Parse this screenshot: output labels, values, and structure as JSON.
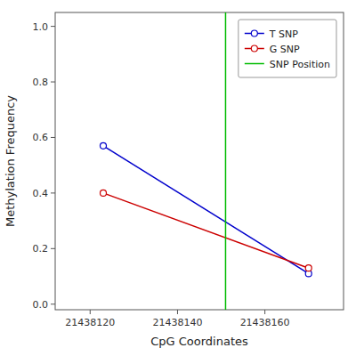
{
  "chart_data": {
    "type": "line",
    "xlabel": "CpG Coordinates",
    "ylabel": "Methylation Frequency",
    "series": [
      {
        "name": "T SNP",
        "color": "#0000CC",
        "marker": "circle",
        "line_style": "solid",
        "x": [
          21438123,
          21438170
        ],
        "values": [
          0.57,
          0.11
        ]
      },
      {
        "name": "G SNP",
        "color": "#CC0000",
        "marker": "circle",
        "line_style": "solid",
        "x": [
          21438123,
          21438170
        ],
        "values": [
          0.4,
          0.13
        ]
      },
      {
        "name": "SNP Position",
        "type": "vline",
        "color": "#00BB00",
        "line_style": "solid",
        "x": [
          21438151
        ]
      }
    ],
    "xlim": [
      21438112,
      21438178
    ],
    "ylim": [
      -0.02,
      1.05
    ],
    "xticks": [
      21438120,
      21438140,
      21438160
    ],
    "yticks": [
      {
        "value": 0,
        "label": "0.0"
      },
      0.2,
      0.4,
      0.6,
      0.8,
      {
        "value": 1,
        "label": "1.0"
      }
    ],
    "grid": false,
    "legend": "upper right"
  }
}
